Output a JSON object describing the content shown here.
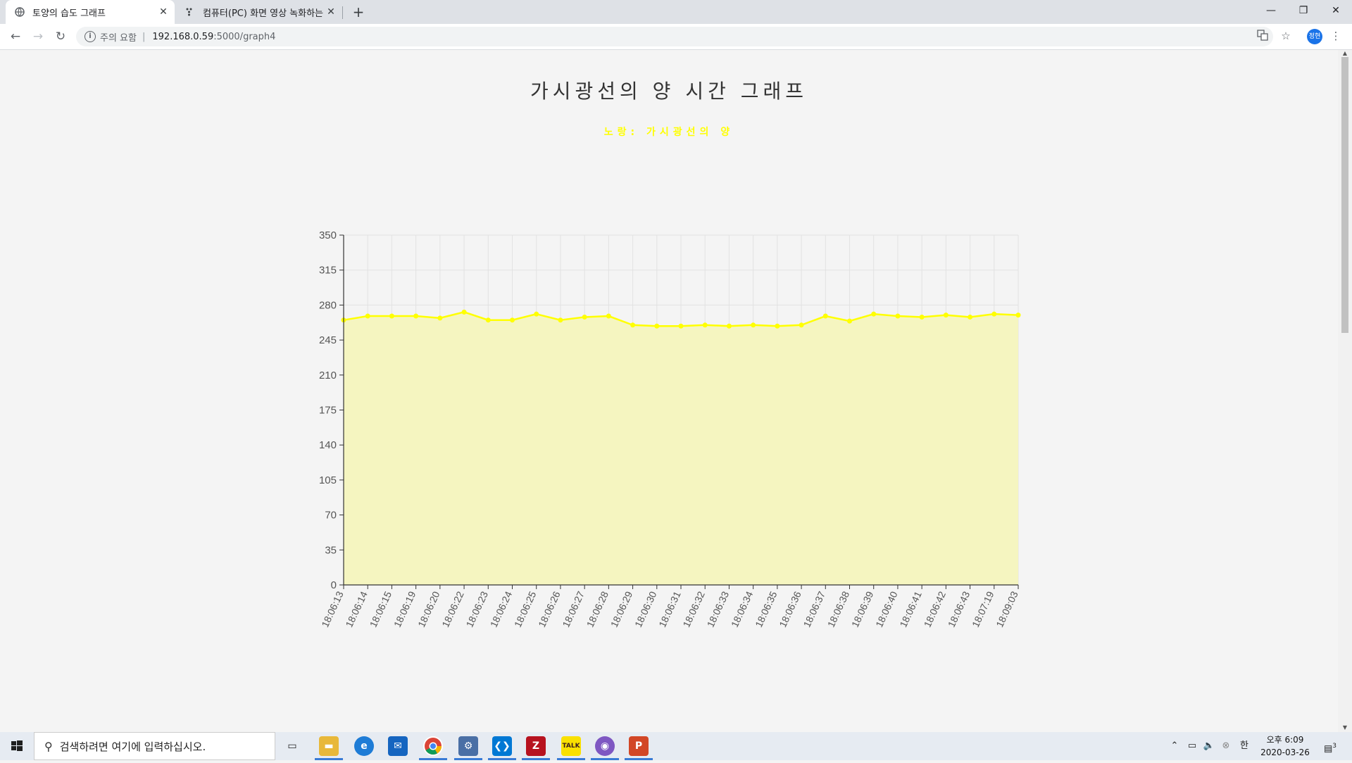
{
  "browser": {
    "tabs": [
      {
        "label": "토양의 습도 그래프",
        "active": true
      },
      {
        "label": "컴퓨터(PC) 화면 영상 녹화하는",
        "active": false
      }
    ],
    "address": {
      "security_label": "주의 요함",
      "separator": "|",
      "host": "192.168.0.59",
      "path": ":5000/graph4"
    },
    "profile_label": "정현"
  },
  "page": {
    "title": "가시광선의 양 시간 그래프",
    "subtitle": "노랑: 가시광선의 양"
  },
  "chart_data": {
    "type": "area",
    "x": [
      "18:06:13",
      "18:06:14",
      "18:06:15",
      "18:06:19",
      "18:06:20",
      "18:06:22",
      "18:06:23",
      "18:06:24",
      "18:06:25",
      "18:06:26",
      "18:06:27",
      "18:06:28",
      "18:06:29",
      "18:06:30",
      "18:06:31",
      "18:06:32",
      "18:06:33",
      "18:06:34",
      "18:06:35",
      "18:06:36",
      "18:06:37",
      "18:06:38",
      "18:06:39",
      "18:06:40",
      "18:06:41",
      "18:06:42",
      "18:06:43",
      "18:07:19",
      "18:09:03"
    ],
    "series": [
      {
        "values": [
          265,
          269,
          269,
          269,
          267,
          273,
          265,
          265,
          271,
          265,
          268,
          269,
          260,
          259,
          259,
          260,
          259,
          260,
          259,
          260,
          269,
          264,
          271,
          269,
          268,
          270,
          268,
          271,
          270
        ]
      }
    ],
    "ylim": [
      0,
      350
    ],
    "yticks": [
      0,
      35,
      70,
      105,
      140,
      175,
      210,
      245,
      280,
      315,
      350
    ],
    "grid": true,
    "line_color": "#ffff00",
    "fill_color": "#f5f5c0"
  },
  "taskbar": {
    "search_placeholder": "검색하려면 여기에 입력하십시오.",
    "ime": "한",
    "time": "오후 6:09",
    "date": "2020-03-26",
    "notification_count": "3"
  }
}
